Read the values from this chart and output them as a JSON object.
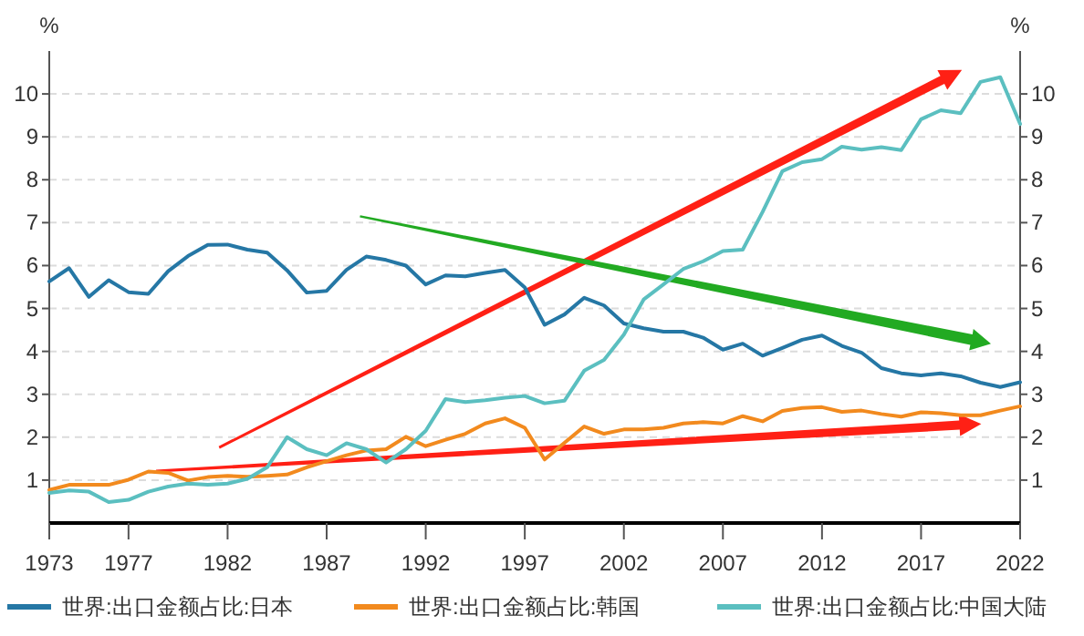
{
  "chart_data": {
    "type": "line",
    "ylabel": "%",
    "y2label": "%",
    "x": [
      1973,
      1974,
      1975,
      1976,
      1977,
      1978,
      1979,
      1980,
      1981,
      1982,
      1983,
      1984,
      1985,
      1986,
      1987,
      1988,
      1989,
      1990,
      1991,
      1992,
      1993,
      1994,
      1995,
      1996,
      1997,
      1998,
      1999,
      2000,
      2001,
      2002,
      2003,
      2004,
      2005,
      2006,
      2007,
      2008,
      2009,
      2010,
      2011,
      2012,
      2013,
      2014,
      2015,
      2016,
      2017,
      2018,
      2019,
      2020,
      2021,
      2022
    ],
    "series": [
      {
        "name": "世界:出口金额占比:日本",
        "color": "#2577a5",
        "values": [
          5.63,
          5.94,
          5.27,
          5.66,
          5.38,
          5.34,
          5.87,
          6.22,
          6.48,
          6.49,
          6.37,
          6.3,
          5.89,
          5.37,
          5.41,
          5.9,
          6.21,
          6.13,
          6.0,
          5.56,
          5.77,
          5.75,
          5.83,
          5.9,
          5.49,
          4.62,
          4.86,
          5.25,
          5.07,
          4.65,
          4.54,
          4.46,
          4.46,
          4.32,
          4.04,
          4.18,
          3.9,
          4.08,
          4.27,
          4.37,
          4.13,
          3.97,
          3.61,
          3.49,
          3.44,
          3.49,
          3.42,
          3.27,
          3.17,
          3.28
        ]
      },
      {
        "name": "世界:出口金额占比:韩国",
        "color": "#f28a1e",
        "values": [
          0.77,
          0.89,
          0.89,
          0.89,
          1.01,
          1.2,
          1.17,
          0.99,
          1.07,
          1.1,
          1.08,
          1.1,
          1.13,
          1.3,
          1.44,
          1.58,
          1.69,
          1.72,
          2.01,
          1.79,
          1.94,
          2.08,
          2.32,
          2.44,
          2.22,
          1.48,
          1.87,
          2.25,
          2.08,
          2.18,
          2.18,
          2.22,
          2.32,
          2.35,
          2.32,
          2.49,
          2.37,
          2.61,
          2.68,
          2.7,
          2.59,
          2.62,
          2.54,
          2.48,
          2.58,
          2.56,
          2.51,
          2.51,
          2.62,
          2.72
        ]
      },
      {
        "name": "世界:出口金额占比:中国大陆",
        "color": "#5bbfc0",
        "values": [
          0.7,
          0.76,
          0.73,
          0.49,
          0.54,
          0.73,
          0.85,
          0.92,
          0.89,
          0.92,
          1.03,
          1.3,
          2.0,
          1.72,
          1.58,
          1.86,
          1.72,
          1.41,
          1.72,
          2.15,
          2.89,
          2.82,
          2.86,
          2.92,
          2.96,
          2.79,
          2.85,
          3.55,
          3.8,
          4.39,
          5.21,
          5.56,
          5.92,
          6.1,
          6.34,
          6.37,
          7.25,
          8.2,
          8.41,
          8.48,
          8.77,
          8.7,
          8.76,
          8.69,
          9.41,
          9.62,
          9.55,
          10.28,
          10.39,
          9.3
        ]
      }
    ],
    "xlim": [
      1973,
      2022
    ],
    "xticks": [
      1973,
      1977,
      1982,
      1987,
      1992,
      1997,
      2002,
      2007,
      2012,
      2017,
      2022
    ],
    "ylim": [
      0,
      11
    ],
    "yticks": [
      1,
      2,
      3,
      4,
      5,
      6,
      7,
      8,
      9,
      10
    ],
    "y2lim": [
      0,
      11
    ],
    "y2ticks": [
      1,
      2,
      3,
      4,
      5,
      6,
      7,
      8,
      9,
      10
    ],
    "grid": "y",
    "legend": "bottom",
    "marker": "none",
    "line_style": "solid"
  }
}
